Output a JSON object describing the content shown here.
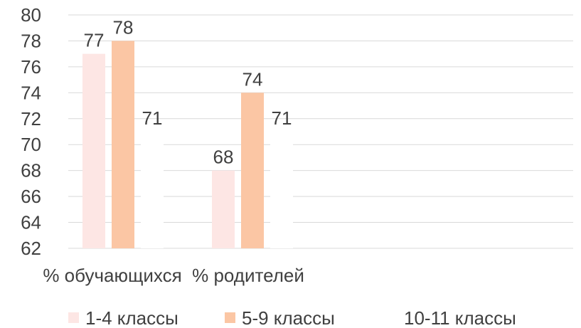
{
  "colors": {
    "series_1": "#fde6e4",
    "series_2": "#fbc6a4",
    "series_3": "#ffffff",
    "gridline": "#d9d9d9",
    "text": "#404040"
  },
  "chart_data": {
    "type": "bar",
    "title": "",
    "xlabel": "",
    "ylabel": "",
    "categories": [
      "% обучающихся",
      "% родителей"
    ],
    "series": [
      {
        "name": "1-4 классы",
        "values": [
          77,
          68
        ]
      },
      {
        "name": "5-9 классы",
        "values": [
          78,
          74
        ]
      },
      {
        "name": "10-11 классы",
        "values": [
          71,
          71
        ]
      }
    ],
    "ylim": [
      62,
      80
    ],
    "yticks": [
      62,
      64,
      66,
      68,
      70,
      72,
      74,
      76,
      78,
      80
    ],
    "grid": true,
    "legend": "bottom"
  }
}
